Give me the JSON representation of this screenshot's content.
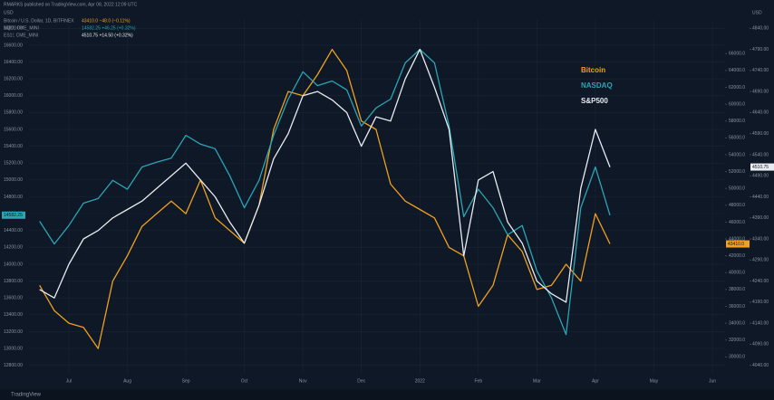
{
  "chart_data": {
    "type": "line",
    "source": "RMARKS published on TradingView.com, Apr 08, 2022 12:09 UTC",
    "axis_unit": "USD",
    "footer": "TradingView",
    "x": [
      null,
      null,
      "Jul",
      null,
      null,
      null,
      "Aug",
      null,
      null,
      null,
      "Sep",
      null,
      null,
      null,
      "Oct",
      null,
      null,
      null,
      "Nov",
      null,
      null,
      null,
      "Dec",
      null,
      null,
      null,
      "2022",
      null,
      null,
      null,
      "Feb",
      null,
      null,
      null,
      "Mar",
      null,
      null,
      null,
      "Apr",
      null,
      null,
      null,
      "May",
      null,
      null,
      null,
      "Jun",
      null,
      null,
      null
    ],
    "series": [
      {
        "name": "Bitcoin",
        "color": "#f0a020",
        "axis": "y2",
        "symbol": "Bitcoin / U.S. Dollar, 1D, BITFINEX",
        "quote": "43410.0 −48.0 (−0.11%)",
        "last_label": "43410.0",
        "values": [
          38500,
          35500,
          34000,
          33500,
          31000,
          39000,
          42000,
          45500,
          47000,
          48500,
          47000,
          51000,
          46500,
          45000,
          43500,
          48000,
          57000,
          61500,
          61000,
          63500,
          66500,
          64000,
          58000,
          57000,
          50500,
          48500,
          47500,
          46500,
          43000,
          42000,
          36000,
          38500,
          44500,
          42500,
          38000,
          38500,
          41000,
          39000,
          47000,
          43410,
          null,
          null,
          null,
          null,
          null,
          null,
          null,
          null,
          null,
          null
        ]
      },
      {
        "name": "NASDAQ",
        "color": "#2aa5b5",
        "axis": "y",
        "symbol": "NQ1!, CME_MINI",
        "quote": "14582.25 +46.25 (+0.32%)",
        "last_label": "14582.25",
        "values": [
          14510,
          14240,
          14460,
          14725,
          14780,
          14995,
          14890,
          15155,
          15210,
          15260,
          15530,
          15425,
          15370,
          15050,
          14670,
          14995,
          15530,
          15960,
          16285,
          16120,
          16175,
          16070,
          15640,
          15855,
          15960,
          16390,
          16550,
          16390,
          15640,
          14565,
          14890,
          14670,
          14350,
          14460,
          13920,
          13600,
          13165,
          14670,
          15155,
          14582.25,
          null,
          null,
          null,
          null,
          null,
          null,
          null,
          null,
          null,
          null
        ]
      },
      {
        "name": "S&P500",
        "color": "#e8ecf0",
        "axis": "y3",
        "symbol": "ES1!, CME_MINI",
        "quote": "4510.75 +14.50 (+0.32%)",
        "last_label": "4510.75",
        "values": [
          4220,
          4200,
          4280,
          4340,
          4360,
          4390,
          4410,
          4430,
          4460,
          4490,
          4520,
          4480,
          4440,
          4380,
          4330,
          4420,
          4530,
          4590,
          4680,
          4690,
          4670,
          4640,
          4560,
          4630,
          4620,
          4720,
          4790,
          4700,
          4600,
          4300,
          4480,
          4500,
          4380,
          4330,
          4240,
          4210,
          4190,
          4460,
          4600,
          4510.75,
          null,
          null,
          null,
          null,
          null,
          null,
          null,
          null,
          null,
          null
        ]
      }
    ],
    "ylim": [
      12700,
      16900
    ],
    "yticks": [
      {
        "value": 12800,
        "label": "12800.00"
      },
      {
        "value": 13000,
        "label": "13000.00"
      },
      {
        "value": 13200,
        "label": "13200.00"
      },
      {
        "value": 13400,
        "label": "13400.00"
      },
      {
        "value": 13600,
        "label": "13600.00"
      },
      {
        "value": 13800,
        "label": "13800.00"
      },
      {
        "value": 14000,
        "label": "14000.00"
      },
      {
        "value": 14200,
        "label": "14200.00"
      },
      {
        "value": 14400,
        "label": "14400.00"
      },
      {
        "value": 14600,
        "label": "14600.00"
      },
      {
        "value": 14800,
        "label": "14800.00"
      },
      {
        "value": 15000,
        "label": "15000.00"
      },
      {
        "value": 15200,
        "label": "15200.00"
      },
      {
        "value": 15400,
        "label": "15400.00"
      },
      {
        "value": 15600,
        "label": "15600.00"
      },
      {
        "value": 15800,
        "label": "15800.00"
      },
      {
        "value": 16000,
        "label": "16000.00"
      },
      {
        "value": 16200,
        "label": "16200.00"
      },
      {
        "value": 16400,
        "label": "16400.00"
      },
      {
        "value": 16600,
        "label": "16600.00"
      },
      {
        "value": 16800,
        "label": "16800.00"
      }
    ],
    "y2lim": [
      28000,
      70000
    ],
    "y2ticks": [
      {
        "value": 30000,
        "label": "30000.0"
      },
      {
        "value": 32000,
        "label": "32000.0"
      },
      {
        "value": 34000,
        "label": "34000.0"
      },
      {
        "value": 36000,
        "label": "36000.0"
      },
      {
        "value": 38000,
        "label": "38000.0"
      },
      {
        "value": 40000,
        "label": "40000.0"
      },
      {
        "value": 42000,
        "label": "42000.0"
      },
      {
        "value": 44000,
        "label": "44000.0"
      },
      {
        "value": 46000,
        "label": "46000.0"
      },
      {
        "value": 48000,
        "label": "48000.0"
      },
      {
        "value": 50000,
        "label": "50000.0"
      },
      {
        "value": 52000,
        "label": "52000.0"
      },
      {
        "value": 54000,
        "label": "54000.0"
      },
      {
        "value": 56000,
        "label": "56000.0"
      },
      {
        "value": 58000,
        "label": "58000.0"
      },
      {
        "value": 60000,
        "label": "60000.0"
      },
      {
        "value": 62000,
        "label": "62000.0"
      },
      {
        "value": 64000,
        "label": "64000.0"
      },
      {
        "value": 66000,
        "label": "66000.0"
      }
    ],
    "y3lim": [
      4020,
      4860
    ],
    "y3ticks": [
      {
        "value": 4040,
        "label": "4040.00"
      },
      {
        "value": 4090,
        "label": "4090.00"
      },
      {
        "value": 4140,
        "label": "4140.00"
      },
      {
        "value": 4190,
        "label": "4190.00"
      },
      {
        "value": 4240,
        "label": "4240.00"
      },
      {
        "value": 4290,
        "label": "4290.00"
      },
      {
        "value": 4340,
        "label": "4340.00"
      },
      {
        "value": 4390,
        "label": "4390.00"
      },
      {
        "value": 4440,
        "label": "4440.00"
      },
      {
        "value": 4490,
        "label": "4490.00"
      },
      {
        "value": 4540,
        "label": "4540.00"
      },
      {
        "value": 4590,
        "label": "4590.00"
      },
      {
        "value": 4640,
        "label": "4640.00"
      },
      {
        "value": 4690,
        "label": "4690.00"
      },
      {
        "value": 4740,
        "label": "4740.00"
      },
      {
        "value": 4790,
        "label": "4790.00"
      },
      {
        "value": 4840,
        "label": "4840.00"
      }
    ],
    "grid": true,
    "grid_color": "#1a2536",
    "background": "#0e1826"
  }
}
